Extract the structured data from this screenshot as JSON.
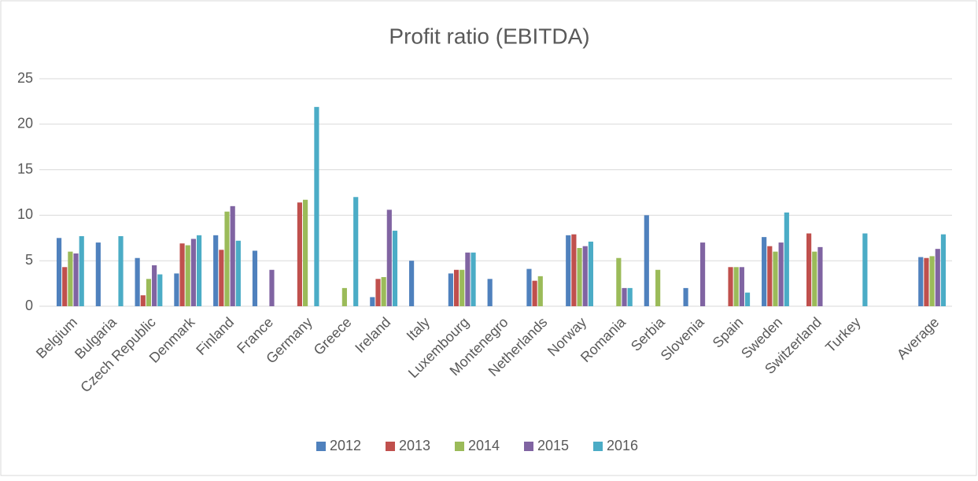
{
  "chart_data": {
    "type": "bar",
    "title": "Profit ratio (EBITDA)",
    "categories": [
      "Belgium",
      "Bulgaria",
      "Czech Republic",
      "Denmark",
      "Finland",
      "France",
      "Germany",
      "Greece",
      "Ireland",
      "Italy",
      "Luxembourg",
      "Montenegro",
      "Netherlands",
      "Norway",
      "Romania",
      "Serbia",
      "Slovenia",
      "Spain",
      "Sweden",
      "Switzerland",
      "Turkey",
      null,
      "Average"
    ],
    "series": [
      {
        "name": "2012",
        "color": "#4f81bd",
        "values": [
          7.5,
          7.0,
          5.3,
          3.6,
          7.8,
          6.1,
          null,
          null,
          1.0,
          5.0,
          3.6,
          3.0,
          4.1,
          7.8,
          null,
          10.0,
          2.0,
          null,
          7.6,
          null,
          null,
          null,
          5.4
        ]
      },
      {
        "name": "2013",
        "color": "#c0504d",
        "values": [
          4.3,
          null,
          1.2,
          6.9,
          6.2,
          null,
          11.4,
          null,
          3.0,
          null,
          4.0,
          null,
          2.8,
          7.9,
          null,
          null,
          null,
          4.3,
          6.6,
          8.0,
          null,
          null,
          5.3
        ]
      },
      {
        "name": "2014",
        "color": "#9bbb59",
        "values": [
          6.0,
          null,
          3.0,
          6.7,
          10.4,
          null,
          11.7,
          2.0,
          3.2,
          null,
          4.0,
          null,
          3.3,
          6.4,
          5.3,
          4.0,
          null,
          4.3,
          6.0,
          6.0,
          null,
          null,
          5.5
        ]
      },
      {
        "name": "2015",
        "color": "#8064a2",
        "values": [
          5.8,
          null,
          4.5,
          7.4,
          11.0,
          4.0,
          null,
          null,
          10.6,
          null,
          5.9,
          null,
          null,
          6.6,
          2.0,
          null,
          7.0,
          4.3,
          7.0,
          6.5,
          null,
          null,
          6.3
        ]
      },
      {
        "name": "2016",
        "color": "#4bacc6",
        "values": [
          7.7,
          7.7,
          3.5,
          7.8,
          7.2,
          null,
          21.9,
          12.0,
          8.3,
          null,
          5.9,
          null,
          null,
          7.1,
          2.0,
          null,
          null,
          1.5,
          10.3,
          null,
          8.0,
          null,
          7.9
        ]
      }
    ],
    "ylim": [
      0,
      25
    ],
    "yticks": [
      0,
      5,
      10,
      15,
      20,
      25
    ],
    "grid": true,
    "legend": "bottom"
  }
}
